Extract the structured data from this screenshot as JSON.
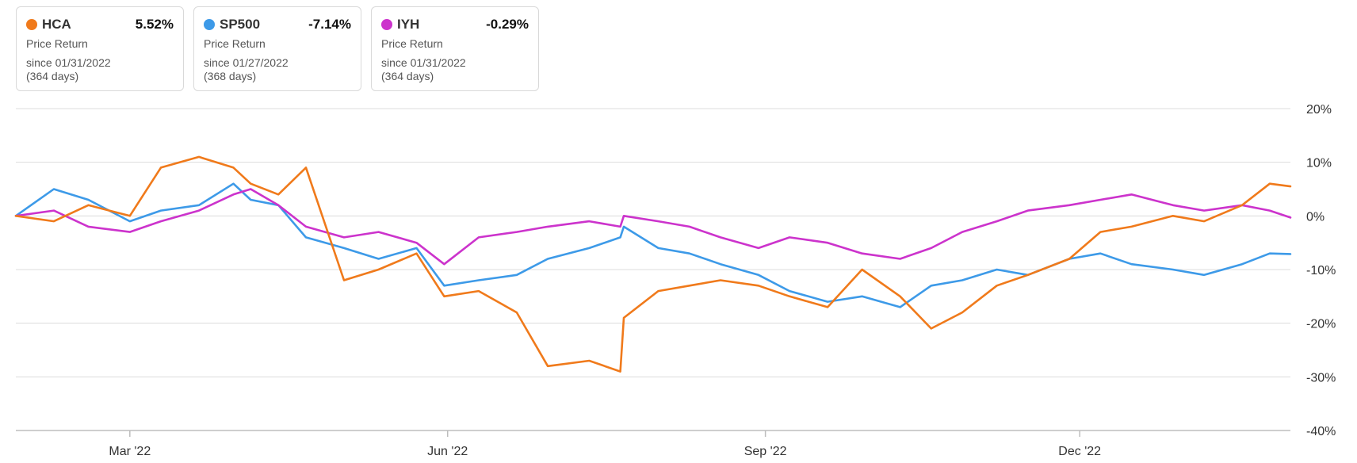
{
  "legend": [
    {
      "symbol": "HCA",
      "return": "5.52%",
      "metric": "Price Return",
      "since": "since 01/31/2022",
      "days": "(364 days)",
      "color": "#f07a1b"
    },
    {
      "symbol": "SP500",
      "return": "-7.14%",
      "metric": "Price Return",
      "since": "since 01/27/2022",
      "days": "(368 days)",
      "color": "#3d9ae8"
    },
    {
      "symbol": "IYH",
      "return": "-0.29%",
      "metric": "Price Return",
      "since": "since 01/31/2022",
      "days": "(364 days)",
      "color": "#cc33cc"
    }
  ],
  "chart_data": {
    "type": "line",
    "title": "",
    "xlabel": "",
    "ylabel": "",
    "ylim": [
      -40,
      20
    ],
    "y_ticks": [
      "20%",
      "10%",
      "0%",
      "-10%",
      "-20%",
      "-30%",
      "-40%"
    ],
    "x_ticks": [
      "Mar '22",
      "Jun '22",
      "Sep '22",
      "Dec '22"
    ],
    "x_range": [
      "2022-01-27",
      "2023-01-31"
    ],
    "grid": true,
    "legend_position": "top-left",
    "x": [
      "2022-01-27",
      "2022-02-07",
      "2022-02-17",
      "2022-03-01",
      "2022-03-10",
      "2022-03-21",
      "2022-03-31",
      "2022-04-05",
      "2022-04-13",
      "2022-04-21",
      "2022-05-02",
      "2022-05-12",
      "2022-05-23",
      "2022-05-31",
      "2022-06-10",
      "2022-06-21",
      "2022-06-30",
      "2022-07-12",
      "2022-07-21",
      "2022-07-22",
      "2022-08-01",
      "2022-08-10",
      "2022-08-19",
      "2022-08-30",
      "2022-09-08",
      "2022-09-19",
      "2022-09-29",
      "2022-10-10",
      "2022-10-19",
      "2022-10-28",
      "2022-11-07",
      "2022-11-16",
      "2022-11-28",
      "2022-12-07",
      "2022-12-16",
      "2022-12-28",
      "2023-01-06",
      "2023-01-17",
      "2023-01-25",
      "2023-01-31"
    ],
    "series": [
      {
        "name": "HCA",
        "color": "#f07a1b",
        "values": [
          0,
          -1,
          2,
          0,
          9,
          11,
          9,
          6,
          4,
          9,
          -12,
          -10,
          -7,
          -15,
          -14,
          -18,
          -28,
          -27,
          -29,
          -19,
          -14,
          -13,
          -12,
          -13,
          -15,
          -17,
          -10,
          -15,
          -21,
          -18,
          -13,
          -11,
          -8,
          -3,
          -2,
          0,
          -1,
          2,
          6,
          5.5
        ]
      },
      {
        "name": "SP500",
        "color": "#3d9ae8",
        "values": [
          0,
          5,
          3,
          -1,
          1,
          2,
          6,
          3,
          2,
          -4,
          -6,
          -8,
          -6,
          -13,
          -12,
          -11,
          -8,
          -6,
          -4,
          -2,
          -6,
          -7,
          -9,
          -11,
          -14,
          -16,
          -15,
          -17,
          -13,
          -12,
          -10,
          -11,
          -8,
          -7,
          -9,
          -10,
          -11,
          -9,
          -7,
          -7.1
        ]
      },
      {
        "name": "IYH",
        "color": "#cc33cc",
        "values": [
          0,
          1,
          -2,
          -3,
          -1,
          1,
          4,
          5,
          2,
          -2,
          -4,
          -3,
          -5,
          -9,
          -4,
          -3,
          -2,
          -1,
          -2,
          0,
          -1,
          -2,
          -4,
          -6,
          -4,
          -5,
          -7,
          -8,
          -6,
          -3,
          -1,
          1,
          2,
          3,
          4,
          2,
          1,
          2,
          1,
          -0.3
        ]
      }
    ]
  }
}
